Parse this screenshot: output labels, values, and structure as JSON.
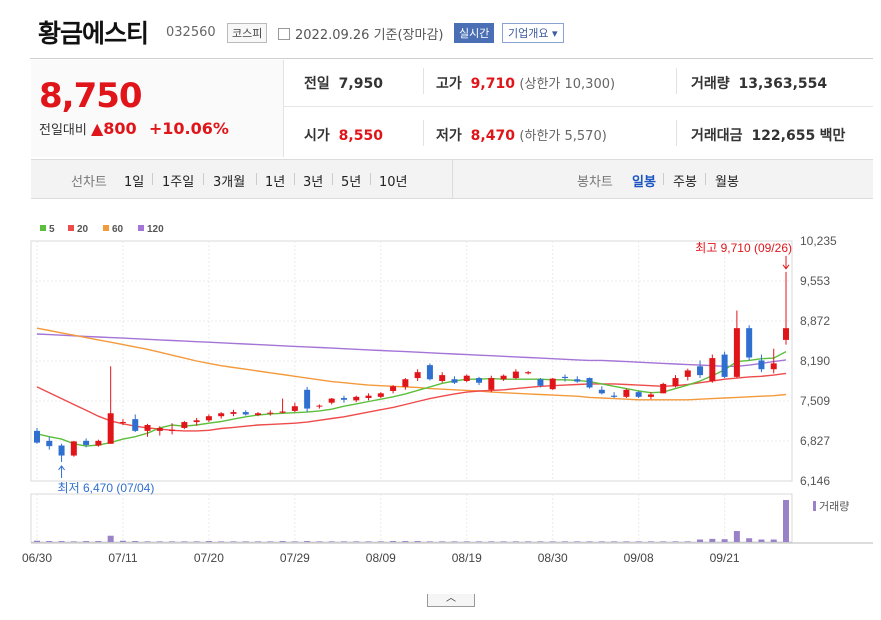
{
  "header": {
    "company": "황금에스티",
    "code": "032560",
    "market": "코스피",
    "date": "2022.09.26 기준(장마감)",
    "realtime": "실시간",
    "company_info": "기업개요 ▾"
  },
  "quote": {
    "price": "8,750",
    "change_label": "전일대비",
    "change": "▲800",
    "change_pct": "+10.06%",
    "prev_label": "전일",
    "prev": "7,950",
    "high_label": "고가",
    "high": "9,710",
    "upper_limit": "(상한가 10,300)",
    "volume_label": "거래량",
    "volume": "13,363,554",
    "open_label": "시가",
    "open": "8,550",
    "low_label": "저가",
    "low": "8,470",
    "lower_limit": "(하한가 5,570)",
    "amount_label": "거래대금",
    "amount": "122,655",
    "amount_unit": "백만"
  },
  "tabs": {
    "line_label": "선차트",
    "line_periods": [
      "1일",
      "1주일",
      "3개월",
      "1년",
      "3년",
      "5년",
      "10년"
    ],
    "candle_label": "봉차트",
    "candle_periods": [
      "일봉",
      "주봉",
      "월봉"
    ],
    "candle_active": "일봉"
  },
  "colors": {
    "up": "#e0151a",
    "down": "#2f6fd0",
    "ma5": "#5cbf3c",
    "ma20": "#ee4b4b",
    "ma60": "#f39a3c",
    "ma120": "#a474d6",
    "volume": "#9a82c9"
  },
  "chart_data": {
    "type": "candlestick",
    "legend": [
      "5",
      "20",
      "60",
      "120"
    ],
    "y_ticks": [
      "10,235",
      "9,553",
      "8,872",
      "8,190",
      "7,509",
      "6,827",
      "6,146"
    ],
    "ylim": [
      6146,
      10235
    ],
    "x_labels": [
      "06/30",
      "07/11",
      "07/20",
      "07/29",
      "08/09",
      "08/19",
      "08/30",
      "09/08",
      "09/21"
    ],
    "x_label_index": [
      0,
      7,
      14,
      21,
      28,
      35,
      42,
      49,
      56
    ],
    "high_annotation": "최고 9,710 (09/26)",
    "low_annotation": "최저 6,470 (07/04)",
    "volume_label": "거래량",
    "ohlc": [
      [
        7000,
        7050,
        6780,
        6800
      ],
      [
        6830,
        6900,
        6680,
        6740
      ],
      [
        6750,
        6780,
        6470,
        6580
      ],
      [
        6580,
        6830,
        6560,
        6820
      ],
      [
        6830,
        6870,
        6720,
        6760
      ],
      [
        6750,
        6850,
        6730,
        6830
      ],
      [
        6780,
        8100,
        6780,
        7300
      ],
      [
        7150,
        7200,
        7100,
        7150
      ],
      [
        7200,
        7280,
        6980,
        7000
      ],
      [
        7000,
        7120,
        6900,
        7100
      ],
      [
        7000,
        7080,
        6920,
        7050
      ],
      [
        7000,
        7130,
        6940,
        7020
      ],
      [
        7050,
        7170,
        7030,
        7150
      ],
      [
        7150,
        7220,
        7090,
        7180
      ],
      [
        7180,
        7280,
        7150,
        7250
      ],
      [
        7250,
        7320,
        7210,
        7300
      ],
      [
        7290,
        7360,
        7250,
        7320
      ],
      [
        7320,
        7350,
        7260,
        7280
      ],
      [
        7270,
        7320,
        7250,
        7300
      ],
      [
        7300,
        7350,
        7260,
        7310
      ],
      [
        7310,
        7550,
        7300,
        7330
      ],
      [
        7340,
        7480,
        7320,
        7420
      ],
      [
        7700,
        7750,
        7320,
        7380
      ],
      [
        7420,
        7450,
        7380,
        7430
      ],
      [
        7480,
        7560,
        7450,
        7550
      ],
      [
        7560,
        7600,
        7480,
        7530
      ],
      [
        7520,
        7600,
        7490,
        7580
      ],
      [
        7560,
        7640,
        7520,
        7600
      ],
      [
        7580,
        7660,
        7560,
        7640
      ],
      [
        7680,
        7780,
        7640,
        7760
      ],
      [
        7750,
        7900,
        7700,
        7880
      ],
      [
        7900,
        8050,
        7850,
        8000
      ],
      [
        8120,
        8150,
        7860,
        7880
      ],
      [
        7850,
        8000,
        7820,
        7950
      ],
      [
        7880,
        7930,
        7800,
        7820
      ],
      [
        7850,
        7960,
        7830,
        7940
      ],
      [
        7900,
        7920,
        7780,
        7820
      ],
      [
        7700,
        7940,
        7660,
        7900
      ],
      [
        7880,
        7960,
        7850,
        7940
      ],
      [
        7900,
        8050,
        7880,
        8010
      ],
      [
        7980,
        8020,
        7960,
        8000
      ],
      [
        7880,
        7900,
        7740,
        7770
      ],
      [
        7710,
        7900,
        7700,
        7890
      ],
      [
        7920,
        7960,
        7840,
        7900
      ],
      [
        7880,
        7930,
        7820,
        7840
      ],
      [
        7900,
        7910,
        7720,
        7740
      ],
      [
        7700,
        7760,
        7620,
        7640
      ],
      [
        7600,
        7660,
        7560,
        7580
      ],
      [
        7580,
        7720,
        7560,
        7700
      ],
      [
        7660,
        7680,
        7560,
        7580
      ],
      [
        7580,
        7660,
        7540,
        7620
      ],
      [
        7640,
        7820,
        7640,
        7800
      ],
      [
        7760,
        7950,
        7740,
        7900
      ],
      [
        7920,
        8060,
        7860,
        8030
      ],
      [
        8100,
        8200,
        7900,
        7950
      ],
      [
        7850,
        8300,
        7820,
        8240
      ],
      [
        8300,
        8350,
        7900,
        7920
      ],
      [
        7920,
        9050,
        7900,
        8750
      ],
      [
        8750,
        8800,
        8200,
        8250
      ],
      [
        8200,
        8300,
        8000,
        8050
      ],
      [
        8050,
        8400,
        7980,
        8150
      ],
      [
        8550,
        9710,
        8470,
        8750
      ]
    ],
    "volume": [
      0.4,
      0.3,
      0.3,
      0.2,
      0.3,
      0.3,
      2.0,
      0.4,
      0.3,
      0.2,
      0.2,
      0.2,
      0.2,
      0.2,
      0.3,
      0.2,
      0.2,
      0.2,
      0.2,
      0.2,
      0.3,
      0.2,
      0.3,
      0.2,
      0.2,
      0.2,
      0.2,
      0.2,
      0.2,
      0.3,
      0.3,
      0.3,
      0.2,
      0.2,
      0.2,
      0.2,
      0.2,
      0.2,
      0.2,
      0.2,
      0.2,
      0.2,
      0.2,
      0.2,
      0.2,
      0.2,
      0.2,
      0.2,
      0.2,
      0.2,
      0.2,
      0.2,
      0.2,
      0.2,
      0.8,
      1.0,
      0.9,
      3.5,
      1.2,
      0.8,
      0.8,
      13.4
    ],
    "ma5": [
      6950,
      6900,
      6860,
      6780,
      6740,
      6760,
      6800,
      6860,
      6900,
      6960,
      7050,
      7100,
      7080,
      7100,
      7130,
      7160,
      7200,
      7240,
      7270,
      7290,
      7300,
      7310,
      7320,
      7340,
      7370,
      7420,
      7460,
      7500,
      7540,
      7580,
      7630,
      7690,
      7750,
      7810,
      7850,
      7880,
      7880,
      7890,
      7880,
      7880,
      7880,
      7880,
      7870,
      7870,
      7860,
      7840,
      7800,
      7760,
      7720,
      7680,
      7650,
      7660,
      7720,
      7780,
      7850,
      7940,
      8040,
      8180,
      8200,
      8230,
      8240,
      8350
    ],
    "ma20": [
      7750,
      7650,
      7550,
      7450,
      7350,
      7250,
      7170,
      7120,
      7080,
      7050,
      7030,
      7010,
      7000,
      7000,
      7010,
      7040,
      7060,
      7080,
      7100,
      7110,
      7120,
      7130,
      7150,
      7180,
      7210,
      7240,
      7280,
      7320,
      7360,
      7400,
      7450,
      7500,
      7550,
      7590,
      7630,
      7660,
      7680,
      7690,
      7700,
      7720,
      7740,
      7760,
      7770,
      7780,
      7790,
      7800,
      7800,
      7800,
      7790,
      7780,
      7770,
      7760,
      7770,
      7790,
      7820,
      7850,
      7880,
      7900,
      7920,
      7930,
      7950,
      7980
    ],
    "ma60": [
      8750,
      8710,
      8670,
      8630,
      8590,
      8550,
      8510,
      8470,
      8430,
      8390,
      8340,
      8290,
      8240,
      8190,
      8150,
      8110,
      8080,
      8050,
      8020,
      7990,
      7960,
      7930,
      7900,
      7870,
      7840,
      7820,
      7800,
      7780,
      7770,
      7760,
      7750,
      7740,
      7720,
      7710,
      7700,
      7690,
      7680,
      7660,
      7650,
      7640,
      7630,
      7620,
      7610,
      7600,
      7590,
      7570,
      7560,
      7550,
      7540,
      7530,
      7530,
      7530,
      7530,
      7530,
      7540,
      7550,
      7560,
      7570,
      7580,
      7590,
      7600,
      7620
    ],
    "ma120": [
      8650,
      8640,
      8630,
      8620,
      8610,
      8600,
      8590,
      8580,
      8570,
      8560,
      8550,
      8540,
      8530,
      8520,
      8510,
      8500,
      8490,
      8480,
      8470,
      8460,
      8450,
      8440,
      8430,
      8420,
      8410,
      8400,
      8390,
      8380,
      8370,
      8360,
      8350,
      8340,
      8330,
      8320,
      8310,
      8300,
      8290,
      8280,
      8270,
      8260,
      8250,
      8240,
      8230,
      8220,
      8210,
      8200,
      8200,
      8190,
      8180,
      8170,
      8160,
      8150,
      8140,
      8130,
      8120,
      8110,
      8100,
      8100,
      8120,
      8150,
      8180,
      8210
    ]
  }
}
